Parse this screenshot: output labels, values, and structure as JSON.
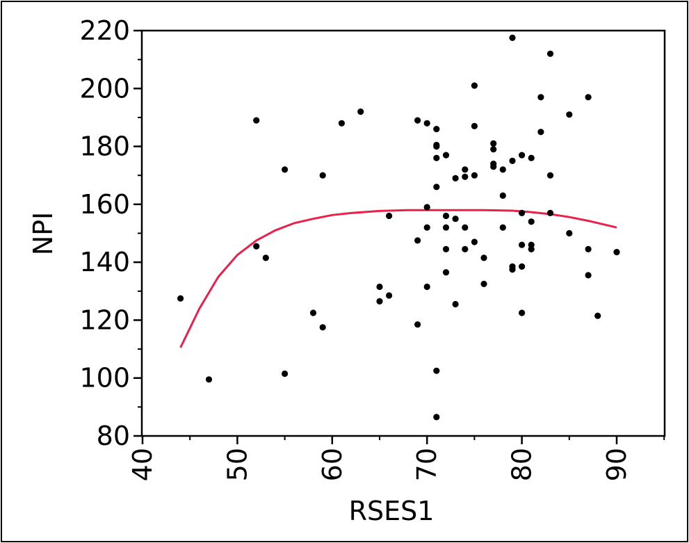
{
  "chart_data": {
    "type": "scatter",
    "title": "",
    "xlabel": "RSES1",
    "ylabel": "NPI",
    "xlim": [
      40,
      95
    ],
    "ylim": [
      80,
      220
    ],
    "xticks": [
      40,
      50,
      60,
      70,
      80,
      90
    ],
    "yticks": [
      80,
      100,
      120,
      140,
      160,
      180,
      200,
      220
    ],
    "xtick_labels": [
      "40",
      "50",
      "60",
      "70",
      "80",
      "90"
    ],
    "ytick_labels": [
      "80",
      "100",
      "120",
      "140",
      "160",
      "180",
      "200",
      "220"
    ],
    "grid": false,
    "legend": false,
    "point_color": "#000000",
    "fit_color": "#e8204a",
    "points": [
      [
        44,
        127.5
      ],
      [
        47,
        99.5
      ],
      [
        52,
        189
      ],
      [
        52,
        145.5
      ],
      [
        53,
        141.5
      ],
      [
        55,
        172
      ],
      [
        55,
        101.5
      ],
      [
        58,
        122.5
      ],
      [
        59,
        170
      ],
      [
        59,
        117.5
      ],
      [
        61,
        188
      ],
      [
        63,
        192
      ],
      [
        65,
        131.5
      ],
      [
        65,
        126.5
      ],
      [
        66,
        156
      ],
      [
        66,
        128.5
      ],
      [
        69,
        189
      ],
      [
        69,
        147.5
      ],
      [
        69,
        118.5
      ],
      [
        70,
        188
      ],
      [
        70,
        159
      ],
      [
        70,
        152
      ],
      [
        70,
        131.5
      ],
      [
        71,
        186
      ],
      [
        71,
        180.5
      ],
      [
        71,
        180
      ],
      [
        71,
        176
      ],
      [
        71,
        166
      ],
      [
        71,
        102.5
      ],
      [
        71,
        86.5
      ],
      [
        72,
        177
      ],
      [
        72,
        156
      ],
      [
        72,
        152
      ],
      [
        72,
        144.5
      ],
      [
        72,
        136.5
      ],
      [
        73,
        169
      ],
      [
        73,
        155
      ],
      [
        73,
        125.5
      ],
      [
        74,
        172
      ],
      [
        74,
        169.5
      ],
      [
        74,
        152
      ],
      [
        74,
        144.5
      ],
      [
        75,
        201
      ],
      [
        75,
        187
      ],
      [
        75,
        170
      ],
      [
        75,
        147
      ],
      [
        76,
        141.5
      ],
      [
        76,
        132.5
      ],
      [
        77,
        181
      ],
      [
        77,
        179
      ],
      [
        77,
        174
      ],
      [
        77,
        173
      ],
      [
        78,
        172
      ],
      [
        78,
        163
      ],
      [
        78,
        152
      ],
      [
        79,
        217.5
      ],
      [
        79,
        175
      ],
      [
        79,
        138.5
      ],
      [
        79,
        137.5
      ],
      [
        80,
        177
      ],
      [
        80,
        157
      ],
      [
        80,
        146
      ],
      [
        80,
        138.5
      ],
      [
        80,
        122.5
      ],
      [
        81,
        176
      ],
      [
        81,
        154
      ],
      [
        81,
        146
      ],
      [
        81,
        144.5
      ],
      [
        82,
        197
      ],
      [
        82,
        185
      ],
      [
        83,
        212
      ],
      [
        83,
        170
      ],
      [
        83,
        157
      ],
      [
        85,
        191
      ],
      [
        85,
        150
      ],
      [
        87,
        197
      ],
      [
        87,
        144.5
      ],
      [
        87,
        135.5
      ],
      [
        88,
        121.5
      ],
      [
        90,
        143.5
      ]
    ],
    "fit_line": [
      [
        44,
        110.5
      ],
      [
        46,
        124
      ],
      [
        48,
        135
      ],
      [
        50,
        142.5
      ],
      [
        52,
        147.5
      ],
      [
        54,
        151
      ],
      [
        56,
        153.5
      ],
      [
        58,
        155
      ],
      [
        60,
        156.3
      ],
      [
        62,
        157
      ],
      [
        65,
        157.7
      ],
      [
        68,
        158
      ],
      [
        72,
        158
      ],
      [
        76,
        158
      ],
      [
        79,
        157.8
      ],
      [
        81,
        157.3
      ],
      [
        83,
        156.6
      ],
      [
        85,
        155.6
      ],
      [
        87,
        154.3
      ],
      [
        90,
        152
      ]
    ]
  }
}
